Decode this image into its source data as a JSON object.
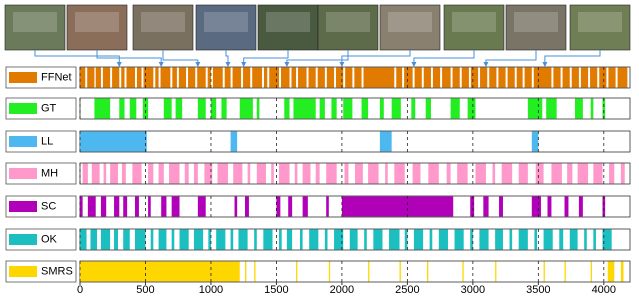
{
  "chart_data": {
    "type": "timeline",
    "xlim": [
      0,
      4200
    ],
    "xticks": [
      0,
      500,
      1000,
      1500,
      2000,
      2500,
      3000,
      3500,
      4000
    ],
    "grid": true,
    "keyframes": [
      300,
      620,
      900,
      1130,
      1250,
      1580,
      2000,
      2550,
      3100,
      3550
    ],
    "rows": [
      {
        "name": "FFNet",
        "color": "#e07b00",
        "segments": [
          [
            0,
            40
          ],
          [
            55,
            110
          ],
          [
            120,
            160
          ],
          [
            175,
            230
          ],
          [
            245,
            300
          ],
          [
            315,
            340
          ],
          [
            355,
            420
          ],
          [
            435,
            470
          ],
          [
            485,
            560
          ],
          [
            575,
            600
          ],
          [
            615,
            690
          ],
          [
            705,
            740
          ],
          [
            755,
            810
          ],
          [
            825,
            880
          ],
          [
            895,
            960
          ],
          [
            975,
            1000
          ],
          [
            1015,
            1090
          ],
          [
            1105,
            1150
          ],
          [
            1165,
            1230
          ],
          [
            1245,
            1300
          ],
          [
            1315,
            1390
          ],
          [
            1405,
            1430
          ],
          [
            1445,
            1520
          ],
          [
            1535,
            1600
          ],
          [
            1615,
            1650
          ],
          [
            1665,
            1730
          ],
          [
            1745,
            1800
          ],
          [
            1815,
            1870
          ],
          [
            1885,
            1940
          ],
          [
            1955,
            2010
          ],
          [
            2025,
            2080
          ],
          [
            2095,
            2150
          ],
          [
            2165,
            2400
          ],
          [
            2415,
            2460
          ],
          [
            2475,
            2540
          ],
          [
            2555,
            2610
          ],
          [
            2625,
            2680
          ],
          [
            2695,
            2750
          ],
          [
            2765,
            2830
          ],
          [
            2845,
            2900
          ],
          [
            2915,
            2970
          ],
          [
            2985,
            3040
          ],
          [
            3055,
            3110
          ],
          [
            3125,
            3180
          ],
          [
            3195,
            3250
          ],
          [
            3265,
            3320
          ],
          [
            3335,
            3380
          ],
          [
            3395,
            3450
          ],
          [
            3465,
            3600
          ],
          [
            3615,
            3670
          ],
          [
            3685,
            3740
          ],
          [
            3755,
            3810
          ],
          [
            3825,
            3880
          ],
          [
            3895,
            3950
          ],
          [
            3965,
            4020
          ],
          [
            4035,
            4090
          ],
          [
            4105,
            4180
          ]
        ]
      },
      {
        "name": "GT",
        "color": "#22ee22",
        "segments": [
          [
            110,
            230
          ],
          [
            300,
            340
          ],
          [
            380,
            430
          ],
          [
            480,
            520
          ],
          [
            640,
            700
          ],
          [
            730,
            780
          ],
          [
            900,
            960
          ],
          [
            1000,
            1040
          ],
          [
            1080,
            1120
          ],
          [
            1220,
            1320
          ],
          [
            1350,
            1370
          ],
          [
            1560,
            1600
          ],
          [
            1630,
            1800
          ],
          [
            1830,
            1870
          ],
          [
            1920,
            1960
          ],
          [
            2010,
            2080
          ],
          [
            2150,
            2200
          ],
          [
            2290,
            2320
          ],
          [
            2380,
            2450
          ],
          [
            2530,
            2560
          ],
          [
            2640,
            2680
          ],
          [
            2830,
            2900
          ],
          [
            2960,
            3020
          ],
          [
            3420,
            3530
          ],
          [
            3560,
            3640
          ],
          [
            3780,
            3840
          ],
          [
            3900,
            3920
          ],
          [
            3990,
            4010
          ]
        ]
      },
      {
        "name": "LL",
        "color": "#4db8f0",
        "segments": [
          [
            0,
            510
          ],
          [
            1150,
            1200
          ],
          [
            2290,
            2380
          ],
          [
            3450,
            3500
          ]
        ]
      },
      {
        "name": "MH",
        "color": "#ff99cc",
        "segments": [
          [
            20,
            60
          ],
          [
            90,
            150
          ],
          [
            180,
            200
          ],
          [
            230,
            290
          ],
          [
            320,
            350
          ],
          [
            400,
            470
          ],
          [
            520,
            560
          ],
          [
            600,
            640
          ],
          [
            680,
            760
          ],
          [
            800,
            830
          ],
          [
            870,
            900
          ],
          [
            950,
            1010
          ],
          [
            1050,
            1130
          ],
          [
            1170,
            1240
          ],
          [
            1280,
            1300
          ],
          [
            1350,
            1420
          ],
          [
            1460,
            1480
          ],
          [
            1520,
            1600
          ],
          [
            1640,
            1660
          ],
          [
            1700,
            1760
          ],
          [
            1800,
            1830
          ],
          [
            1880,
            1960
          ],
          [
            2020,
            2050
          ],
          [
            2100,
            2160
          ],
          [
            2200,
            2280
          ],
          [
            2330,
            2350
          ],
          [
            2400,
            2480
          ],
          [
            2540,
            2600
          ],
          [
            2660,
            2740
          ],
          [
            2800,
            2830
          ],
          [
            2880,
            2960
          ],
          [
            3020,
            3100
          ],
          [
            3150,
            3170
          ],
          [
            3220,
            3300
          ],
          [
            3350,
            3420
          ],
          [
            3480,
            3540
          ],
          [
            3600,
            3680
          ],
          [
            3720,
            3760
          ],
          [
            3800,
            3880
          ],
          [
            3920,
            3990
          ],
          [
            4040,
            4080
          ],
          [
            4130,
            4160
          ]
        ]
      },
      {
        "name": "SC",
        "color": "#b000b8",
        "segments": [
          [
            0,
            20
          ],
          [
            60,
            120
          ],
          [
            160,
            200
          ],
          [
            260,
            300
          ],
          [
            330,
            360
          ],
          [
            420,
            450
          ],
          [
            520,
            540
          ],
          [
            620,
            660
          ],
          [
            700,
            760
          ],
          [
            900,
            960
          ],
          [
            1180,
            1200
          ],
          [
            1260,
            1290
          ],
          [
            1500,
            1530
          ],
          [
            1590,
            1620
          ],
          [
            1700,
            1740
          ],
          [
            1880,
            1900
          ],
          [
            2000,
            2850
          ],
          [
            2980,
            3010
          ],
          [
            3080,
            3120
          ],
          [
            3200,
            3230
          ],
          [
            3450,
            3520
          ],
          [
            3570,
            3600
          ],
          [
            3700,
            3730
          ],
          [
            3810,
            3840
          ],
          [
            3990,
            4010
          ]
        ]
      },
      {
        "name": "OK",
        "color": "#1bbfbf",
        "segments": [
          [
            0,
            50
          ],
          [
            80,
            130
          ],
          [
            160,
            230
          ],
          [
            260,
            290
          ],
          [
            330,
            380
          ],
          [
            420,
            500
          ],
          [
            540,
            560
          ],
          [
            600,
            660
          ],
          [
            700,
            720
          ],
          [
            760,
            830
          ],
          [
            870,
            940
          ],
          [
            980,
            1000
          ],
          [
            1040,
            1110
          ],
          [
            1150,
            1170
          ],
          [
            1210,
            1280
          ],
          [
            1330,
            1350
          ],
          [
            1400,
            1470
          ],
          [
            1520,
            1540
          ],
          [
            1580,
            1620
          ],
          [
            1680,
            1700
          ],
          [
            1750,
            1820
          ],
          [
            1870,
            1890
          ],
          [
            1940,
            2010
          ],
          [
            2060,
            2120
          ],
          [
            2170,
            2190
          ],
          [
            2240,
            2310
          ],
          [
            2360,
            2440
          ],
          [
            2480,
            2500
          ],
          [
            2550,
            2620
          ],
          [
            2670,
            2690
          ],
          [
            2740,
            2810
          ],
          [
            2860,
            2930
          ],
          [
            2980,
            3000
          ],
          [
            3050,
            3120
          ],
          [
            3170,
            3230
          ],
          [
            3280,
            3300
          ],
          [
            3350,
            3420
          ],
          [
            3470,
            3490
          ],
          [
            3540,
            3610
          ],
          [
            3660,
            3690
          ],
          [
            3740,
            3800
          ],
          [
            3850,
            3870
          ],
          [
            3920,
            3940
          ],
          [
            3990,
            4060
          ]
        ]
      },
      {
        "name": "SMRS",
        "color": "#ffd700",
        "segments": [
          [
            0,
            1220
          ],
          [
            1260,
            1270
          ],
          [
            1330,
            1340
          ],
          [
            1650,
            1660
          ],
          [
            1900,
            1910
          ],
          [
            2200,
            2210
          ],
          [
            2440,
            2450
          ],
          [
            2650,
            2660
          ],
          [
            2920,
            2930
          ],
          [
            3170,
            3180
          ],
          [
            3540,
            3550
          ],
          [
            3700,
            3710
          ],
          [
            3900,
            3910
          ],
          [
            4030,
            4080
          ],
          [
            4130,
            4150
          ]
        ]
      }
    ]
  }
}
